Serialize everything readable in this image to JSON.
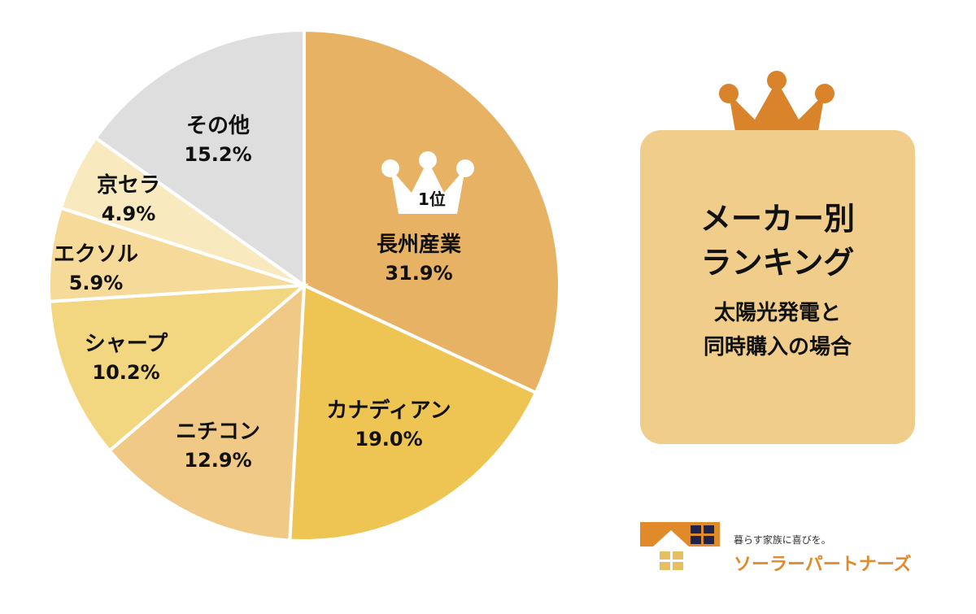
{
  "chart_data": {
    "type": "pie",
    "start": "top",
    "direction": "clockwise",
    "slices": [
      {
        "label": "長州産業",
        "value": 31.9,
        "text": "31.9%",
        "color": "#E8B265"
      },
      {
        "label": "カナディアン",
        "value": 19.0,
        "text": "19.0%",
        "color": "#EEC453"
      },
      {
        "label": "ニチコン",
        "value": 12.9,
        "text": "12.9%",
        "color": "#F0C986"
      },
      {
        "label": "シャープ",
        "value": 10.2,
        "text": "10.2%",
        "color": "#F3D680"
      },
      {
        "label": "エクソル",
        "value": 5.9,
        "text": "5.9%",
        "color": "#F5DA9A"
      },
      {
        "label": "京セラ",
        "value": 4.9,
        "text": "4.9%",
        "color": "#F8E9BE"
      },
      {
        "label": "その他",
        "value": 15.2,
        "text": "15.2%",
        "color": "#DEDEDE"
      }
    ],
    "rank_badge": "1位"
  },
  "panel": {
    "title_line1": "メーカー別",
    "title_line2": "ランキング",
    "sub_line1": "太陽光発電と",
    "sub_line2": "同時購入の場合",
    "bg_color": "#F0CD8A",
    "crown_color": "#D9832B"
  },
  "logo": {
    "tagline": "暮らす家族に喜びを。",
    "brand": "ソーラーパートナーズ"
  }
}
